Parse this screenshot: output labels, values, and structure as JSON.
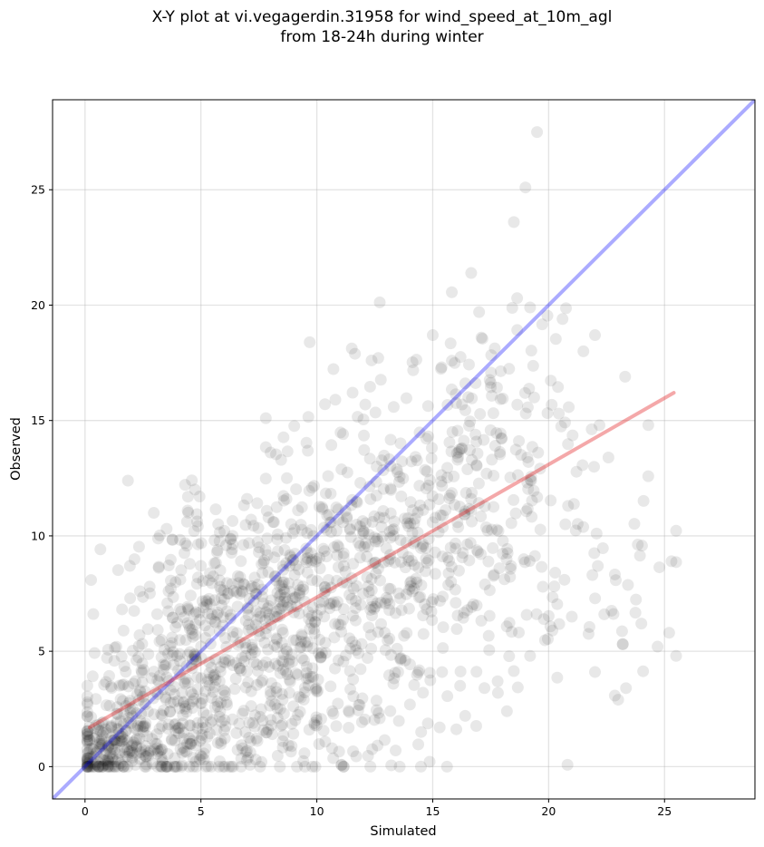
{
  "chart_data": {
    "type": "scatter",
    "title_line1": "X-Y plot at vi.vegagerdin.31958 for wind_speed_at_10m_agl",
    "title_line2": "from 18-24h during winter",
    "xlabel": "Simulated",
    "ylabel": "Observed",
    "xlim": [
      -1.4,
      28.9
    ],
    "ylim": [
      -1.4,
      28.9
    ],
    "xticks": [
      0,
      5,
      10,
      15,
      20,
      25
    ],
    "yticks": [
      0,
      5,
      10,
      15,
      20,
      25
    ],
    "grid": true,
    "point_color": "#000000",
    "point_alpha": 0.09,
    "identity_line": {
      "color": "#0000ff",
      "alpha": 0.33,
      "from": [
        -1.4,
        -1.4
      ],
      "to": [
        28.9,
        28.9
      ]
    },
    "fit_line": {
      "color": "#e31a1c",
      "alpha": 0.38,
      "from": [
        0.2,
        1.7
      ],
      "to": [
        25.4,
        16.2
      ]
    },
    "clusters": [
      {
        "cx": 1.2,
        "cy": 0.8,
        "sx": 0.9,
        "sy": 0.8,
        "n": 160
      },
      {
        "cx": 3.5,
        "cy": 2.5,
        "sx": 1.6,
        "sy": 2.0,
        "n": 230
      },
      {
        "cx": 6.5,
        "cy": 7.0,
        "sx": 2.2,
        "sy": 2.4,
        "n": 320
      },
      {
        "cx": 9.5,
        "cy": 4.5,
        "sx": 2.8,
        "sy": 2.8,
        "n": 260
      },
      {
        "cx": 12.0,
        "cy": 9.5,
        "sx": 2.5,
        "sy": 2.6,
        "n": 260
      },
      {
        "cx": 16.5,
        "cy": 13.0,
        "sx": 2.6,
        "sy": 3.2,
        "n": 230
      },
      {
        "cx": 18.5,
        "cy": 8.0,
        "sx": 3.5,
        "sy": 2.8,
        "n": 110
      },
      {
        "cx": 6.0,
        "cy": 1.2,
        "sx": 3.0,
        "sy": 0.9,
        "n": 90
      }
    ],
    "outliers": [
      [
        19.5,
        27.5
      ],
      [
        19.0,
        25.1
      ],
      [
        18.5,
        23.6
      ],
      [
        17.0,
        19.7
      ],
      [
        19.2,
        19.9
      ],
      [
        20.6,
        19.4
      ],
      [
        15.0,
        18.7
      ],
      [
        22.0,
        18.7
      ],
      [
        7.8,
        15.1
      ],
      [
        10.8,
        15.9
      ],
      [
        21.5,
        18.0
      ],
      [
        23.3,
        16.9
      ],
      [
        24.3,
        14.8
      ],
      [
        23.0,
        2.9
      ],
      [
        25.3,
        8.9
      ],
      [
        25.5,
        4.8
      ],
      [
        23.2,
        5.3
      ],
      [
        22.0,
        4.1
      ],
      [
        18.2,
        2.4
      ],
      [
        16.4,
        2.2
      ],
      [
        15.3,
        1.7
      ],
      [
        14.5,
        1.5
      ],
      [
        13.4,
        0.7
      ],
      [
        24.0,
        6.2
      ],
      [
        25.2,
        5.8
      ],
      [
        24.7,
        5.2
      ],
      [
        22.4,
        6.6
      ],
      [
        21.0,
        6.5
      ],
      [
        19.2,
        4.8
      ],
      [
        17.8,
        3.7
      ]
    ]
  }
}
